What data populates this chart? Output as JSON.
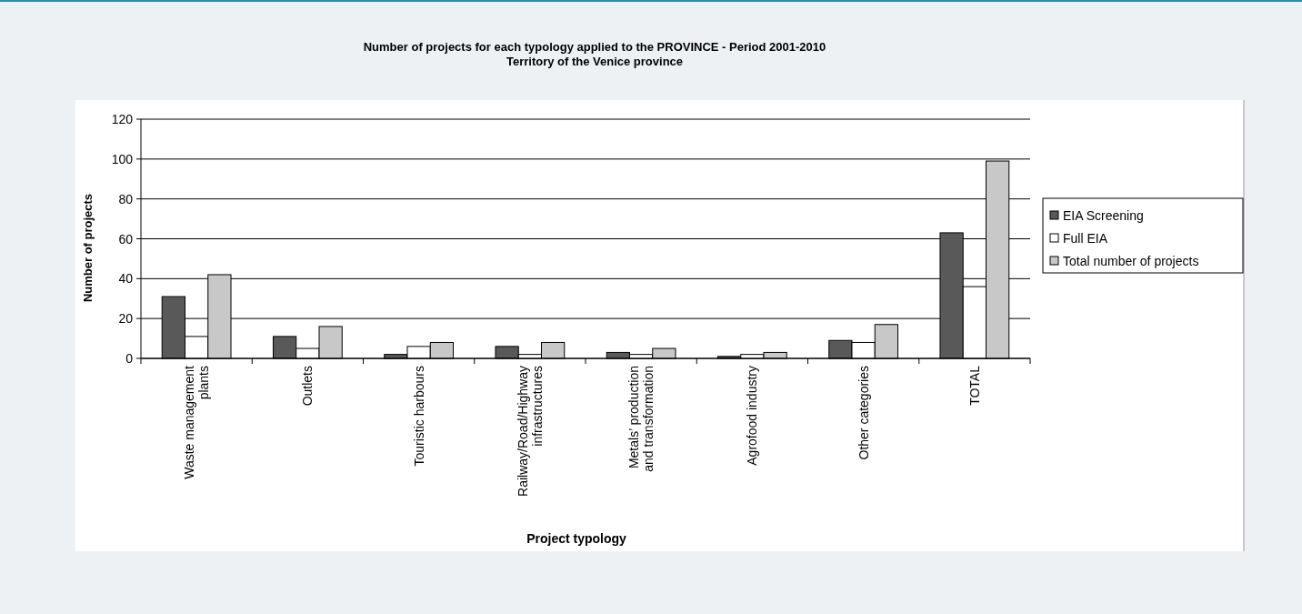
{
  "chart_data": {
    "type": "bar",
    "title": "Number of projects for each typology applied to the PROVINCE - Period 2001-2010",
    "subtitle": "Territory of the Venice province",
    "xlabel": "Project typology",
    "ylabel": "Number of projects",
    "categories": [
      "Waste management plants",
      "Outlets",
      "Touristic harbours",
      "Railway/Road/Highway infrastructures",
      "Metals’ production and transformation",
      "Agrofood industry",
      "Other categories",
      "TOTAL"
    ],
    "series": [
      {
        "name": "EIA Screening",
        "color": "#595959",
        "values": [
          31,
          11,
          2,
          6,
          3,
          1,
          9,
          63
        ]
      },
      {
        "name": "Full EIA",
        "color": "#ffffff",
        "values": [
          11,
          5,
          6,
          2,
          2,
          2,
          8,
          36
        ]
      },
      {
        "name": "Total number of projects",
        "color": "#c8c8c8",
        "values": [
          42,
          16,
          8,
          8,
          5,
          3,
          17,
          99
        ]
      }
    ],
    "ylim": [
      0,
      120
    ],
    "yticks": [
      0,
      20,
      40,
      60,
      80,
      100,
      120
    ],
    "grid": "y",
    "legend": "right"
  }
}
